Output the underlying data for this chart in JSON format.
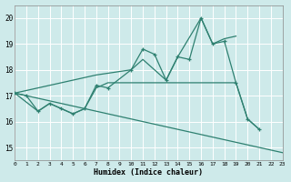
{
  "xlabel": "Humidex (Indice chaleur)",
  "xlim": [
    0,
    23
  ],
  "ylim": [
    14.5,
    20.5
  ],
  "yticks": [
    15,
    16,
    17,
    18,
    19,
    20
  ],
  "xticks": [
    0,
    1,
    2,
    3,
    4,
    5,
    6,
    7,
    8,
    9,
    10,
    11,
    12,
    13,
    14,
    15,
    16,
    17,
    18,
    19,
    20,
    21,
    22,
    23
  ],
  "bg_color": "#ceeaea",
  "grid_color": "#b8d8d8",
  "line_color": "#2e8070",
  "line1_x": [
    0,
    1,
    2,
    3,
    4,
    5,
    6,
    7,
    8,
    10,
    11,
    12,
    13,
    14,
    15,
    16,
    17,
    18,
    19,
    20,
    21
  ],
  "line1_y": [
    17.1,
    17.0,
    16.4,
    16.7,
    16.5,
    16.3,
    16.5,
    17.4,
    17.3,
    18.0,
    18.8,
    18.6,
    17.6,
    18.5,
    18.4,
    20.0,
    19.0,
    19.1,
    17.5,
    16.1,
    15.7
  ],
  "line2_x": [
    0,
    7,
    10,
    11,
    13,
    14,
    16,
    17,
    18,
    19
  ],
  "line2_y": [
    17.1,
    17.8,
    18.0,
    18.4,
    17.6,
    18.5,
    20.0,
    19.0,
    19.2,
    19.3
  ],
  "line3_x": [
    0,
    23
  ],
  "line3_y": [
    17.1,
    14.8
  ],
  "line4_x": [
    0,
    2,
    3,
    4,
    5,
    6,
    7,
    8,
    19,
    20,
    21
  ],
  "line4_y": [
    17.1,
    16.4,
    16.7,
    16.5,
    16.3,
    16.5,
    17.3,
    17.5,
    17.5,
    16.1,
    15.7
  ]
}
